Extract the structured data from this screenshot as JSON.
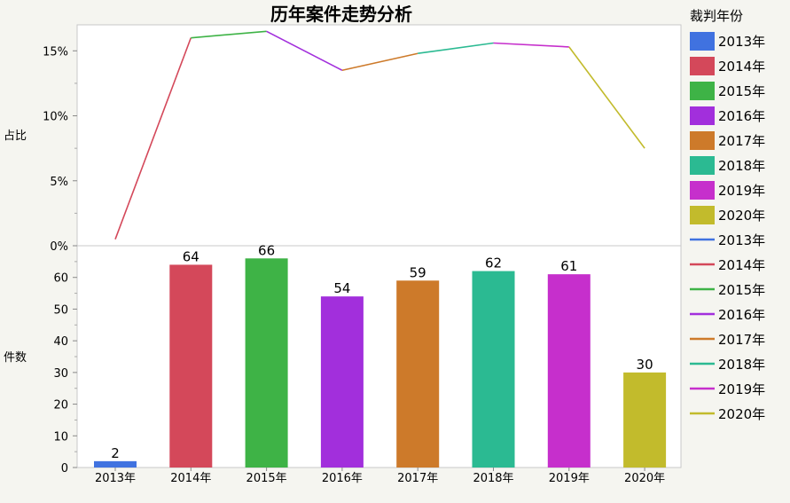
{
  "chart_data": {
    "type": "bar+line",
    "title": "历年案件走势分析",
    "categories": [
      "2013年",
      "2014年",
      "2015年",
      "2016年",
      "2017年",
      "2018年",
      "2019年",
      "2020年"
    ],
    "bar_panel": {
      "ylabel": "件数",
      "ylim": [
        0,
        70
      ],
      "yticks": [
        "0",
        "10",
        "20",
        "30",
        "40",
        "50",
        "60"
      ],
      "ytick_values": [
        0,
        10,
        20,
        30,
        40,
        50,
        60
      ],
      "values": [
        2,
        64,
        66,
        54,
        59,
        62,
        61,
        30
      ],
      "labels": [
        "2",
        "64",
        "66",
        "54",
        "59",
        "62",
        "61",
        "30"
      ]
    },
    "line_panel": {
      "ylabel": "占比",
      "ylim": [
        0,
        0.17
      ],
      "yticks": [
        "0%",
        "5%",
        "10%",
        "15%"
      ],
      "ytick_values": [
        0,
        0.05,
        0.1,
        0.15
      ],
      "values": [
        0.005,
        0.16,
        0.165,
        0.135,
        0.148,
        0.156,
        0.153,
        0.075
      ]
    },
    "legend": {
      "title": "裁判年份",
      "placement": "right",
      "bar_entries": [
        "2013年",
        "2014年",
        "2015年",
        "2016年",
        "2017年",
        "2018年",
        "2019年",
        "2020年"
      ],
      "line_entries": [
        "2013年",
        "2014年",
        "2015年",
        "2016年",
        "2017年",
        "2018年",
        "2019年",
        "2020年"
      ]
    },
    "colors": [
      "#4072e0",
      "#d4485a",
      "#3eb346",
      "#a22fdc",
      "#cd7a2a",
      "#2bba92",
      "#c62fcc",
      "#c2bb2c"
    ],
    "grid": false
  }
}
